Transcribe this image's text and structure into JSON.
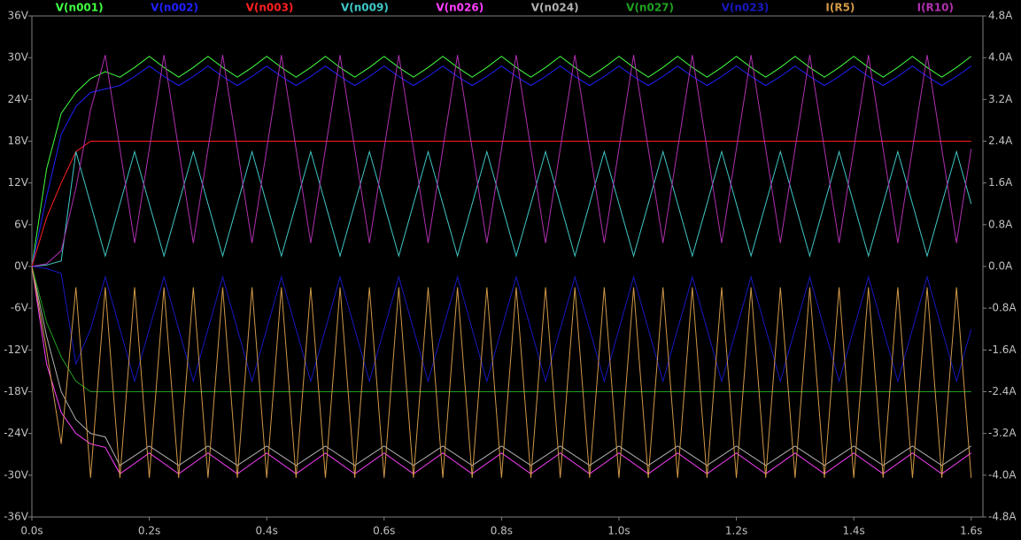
{
  "chart_data": {
    "type": "line",
    "x": [
      0,
      0.025,
      0.05,
      0.075,
      0.1,
      0.125,
      0.15,
      0.175,
      0.2,
      0.225,
      0.25,
      0.275,
      0.3,
      0.325,
      0.35,
      0.375,
      0.4,
      0.425,
      0.45,
      0.475,
      0.5,
      0.525,
      0.55,
      0.575,
      0.6,
      0.625,
      0.65,
      0.675,
      0.7,
      0.725,
      0.75,
      0.775,
      0.8,
      0.825,
      0.85,
      0.875,
      0.9,
      0.925,
      0.95,
      0.975,
      1,
      1.025,
      1.05,
      1.075,
      1.1,
      1.125,
      1.15,
      1.175,
      1.2,
      1.225,
      1.25,
      1.275,
      1.3,
      1.325,
      1.35,
      1.375,
      1.4,
      1.425,
      1.45,
      1.475,
      1.5,
      1.525,
      1.55,
      1.575,
      1.6
    ],
    "xlim": [
      0,
      1.62
    ],
    "xticks": [
      {
        "value": 0,
        "label": "0.0s"
      },
      {
        "value": 0.2,
        "label": "0.2s"
      },
      {
        "value": 0.4,
        "label": "0.4s"
      },
      {
        "value": 0.6,
        "label": "0.6s"
      },
      {
        "value": 0.8,
        "label": "0.8s"
      },
      {
        "value": 1.0,
        "label": "1.0s"
      },
      {
        "value": 1.2,
        "label": "1.2s"
      },
      {
        "value": 1.4,
        "label": "1.4s"
      },
      {
        "value": 1.6,
        "label": "1.6s"
      }
    ],
    "ylim": [
      -36,
      36
    ],
    "yticks": [
      {
        "value": 36,
        "label": "36V"
      },
      {
        "value": 30,
        "label": "30V"
      },
      {
        "value": 24,
        "label": "24V"
      },
      {
        "value": 18,
        "label": "18V"
      },
      {
        "value": 12,
        "label": "12V"
      },
      {
        "value": 6,
        "label": "6V"
      },
      {
        "value": 0,
        "label": "0V"
      },
      {
        "value": -6,
        "label": "-6V"
      },
      {
        "value": -12,
        "label": "-12V"
      },
      {
        "value": -18,
        "label": "-18V"
      },
      {
        "value": -24,
        "label": "-24V"
      },
      {
        "value": -30,
        "label": "-30V"
      },
      {
        "value": -36,
        "label": "-36V"
      }
    ],
    "y2lim": [
      -4.8,
      4.8
    ],
    "y2ticks": [
      {
        "value": 4.8,
        "label": "4.8A"
      },
      {
        "value": 4.0,
        "label": "4.0A"
      },
      {
        "value": 3.2,
        "label": "3.2A"
      },
      {
        "value": 2.4,
        "label": "2.4A"
      },
      {
        "value": 1.6,
        "label": "1.6A"
      },
      {
        "value": 0.8,
        "label": "0.8A"
      },
      {
        "value": 0,
        "label": "0.0A"
      },
      {
        "value": -0.8,
        "label": "-0.8A"
      },
      {
        "value": -1.6,
        "label": "-1.6A"
      },
      {
        "value": -2.4,
        "label": "-2.4A"
      },
      {
        "value": -3.2,
        "label": "-3.2A"
      },
      {
        "value": -4.0,
        "label": "-4.0A"
      },
      {
        "value": -4.8,
        "label": "-4.8A"
      }
    ],
    "grid": false,
    "series": [
      {
        "name": "V(n001)",
        "color": "#40ff40",
        "values": [
          0,
          14,
          22,
          25,
          27,
          28,
          27.2,
          28.6,
          30.2,
          28.6,
          27.2,
          28.6,
          30.2,
          28.6,
          27.2,
          28.6,
          30.2,
          28.6,
          27.2,
          28.6,
          30.2,
          28.6,
          27.2,
          28.6,
          30.2,
          28.6,
          27.2,
          28.6,
          30.2,
          28.6,
          27.2,
          28.6,
          30.2,
          28.6,
          27.2,
          28.6,
          30.2,
          28.6,
          27.2,
          28.6,
          30.2,
          28.6,
          27.2,
          28.6,
          30.2,
          28.6,
          27.2,
          28.6,
          30.2,
          28.6,
          27.2,
          28.6,
          30.2,
          28.6,
          27.2,
          28.6,
          30.2,
          28.6,
          27.2,
          28.6,
          30.2,
          28.6,
          27.2,
          28.6,
          30.2
        ]
      },
      {
        "name": "V(n002)",
        "color": "#2020ff",
        "values": [
          0,
          10,
          19,
          23,
          25,
          25.5,
          26,
          27.3,
          28.8,
          27.3,
          26,
          27.3,
          28.8,
          27.3,
          26,
          27.3,
          28.8,
          27.3,
          26,
          27.3,
          28.8,
          27.3,
          26,
          27.3,
          28.8,
          27.3,
          26,
          27.3,
          28.8,
          27.3,
          26,
          27.3,
          28.8,
          27.3,
          26,
          27.3,
          28.8,
          27.3,
          26,
          27.3,
          28.8,
          27.3,
          26,
          27.3,
          28.8,
          27.3,
          26,
          27.3,
          28.8,
          27.3,
          26,
          27.3,
          28.8,
          27.3,
          26,
          27.3,
          28.8,
          27.3,
          26,
          27.3,
          28.8,
          27.3,
          26,
          27.3,
          28.8
        ]
      },
      {
        "name": "V(n003)",
        "color": "#ff2020",
        "values": [
          0,
          7,
          12,
          16.5,
          18,
          18,
          18,
          18,
          18,
          18,
          18,
          18,
          18,
          18,
          18,
          18,
          18,
          18,
          18,
          18,
          18,
          18,
          18,
          18,
          18,
          18,
          18,
          18,
          18,
          18,
          18,
          18,
          18,
          18,
          18,
          18,
          18,
          18,
          18,
          18,
          18,
          18,
          18,
          18,
          18,
          18,
          18,
          18,
          18,
          18,
          18,
          18,
          18,
          18,
          18,
          18,
          18,
          18,
          18,
          18,
          18,
          18,
          18,
          18,
          18
        ]
      },
      {
        "name": "V(n009)",
        "color": "#40c8c8",
        "values": [
          0,
          0.2,
          0.8,
          16.5,
          9,
          1.5,
          9,
          16.5,
          9,
          1.5,
          9,
          16.5,
          9,
          1.5,
          9,
          16.5,
          9,
          1.5,
          9,
          16.5,
          9,
          1.5,
          9,
          16.5,
          9,
          1.5,
          9,
          16.5,
          9,
          1.5,
          9,
          16.5,
          9,
          1.5,
          9,
          16.5,
          9,
          1.5,
          9,
          16.5,
          9,
          1.5,
          9,
          16.5,
          9,
          1.5,
          9,
          16.5,
          9,
          1.5,
          9,
          16.5,
          9,
          1.5,
          9,
          16.5,
          9,
          1.5,
          9,
          16.5,
          9,
          1.5,
          9,
          16.5,
          9
        ]
      },
      {
        "name": "V(n026)",
        "color": "#ff40ff",
        "values": [
          0,
          -14,
          -21,
          -24,
          -25.5,
          -26,
          -29.8,
          -28.3,
          -26.8,
          -28.3,
          -29.8,
          -28.3,
          -26.8,
          -28.3,
          -29.8,
          -28.3,
          -26.8,
          -28.3,
          -29.8,
          -28.3,
          -26.8,
          -28.3,
          -29.8,
          -28.3,
          -26.8,
          -28.3,
          -29.8,
          -28.3,
          -26.8,
          -28.3,
          -29.8,
          -28.3,
          -26.8,
          -28.3,
          -29.8,
          -28.3,
          -26.8,
          -28.3,
          -29.8,
          -28.3,
          -26.8,
          -28.3,
          -29.8,
          -28.3,
          -26.8,
          -28.3,
          -29.8,
          -28.3,
          -26.8,
          -28.3,
          -29.8,
          -28.3,
          -26.8,
          -28.3,
          -29.8,
          -28.3,
          -26.8,
          -28.3,
          -29.8,
          -28.3,
          -26.8,
          -28.3,
          -29.8,
          -28.3,
          -26.8
        ]
      },
      {
        "name": "V(n024)",
        "color": "#b0b0b0",
        "values": [
          0,
          -10,
          -18,
          -22,
          -24,
          -24.5,
          -28.6,
          -27.2,
          -25.8,
          -27.2,
          -28.6,
          -27.2,
          -25.8,
          -27.2,
          -28.6,
          -27.2,
          -25.8,
          -27.2,
          -28.6,
          -27.2,
          -25.8,
          -27.2,
          -28.6,
          -27.2,
          -25.8,
          -27.2,
          -28.6,
          -27.2,
          -25.8,
          -27.2,
          -28.6,
          -27.2,
          -25.8,
          -27.2,
          -28.6,
          -27.2,
          -25.8,
          -27.2,
          -28.6,
          -27.2,
          -25.8,
          -27.2,
          -28.6,
          -27.2,
          -25.8,
          -27.2,
          -28.6,
          -27.2,
          -25.8,
          -27.2,
          -28.6,
          -27.2,
          -25.8,
          -27.2,
          -28.6,
          -27.2,
          -25.8,
          -27.2,
          -28.6,
          -27.2,
          -25.8,
          -27.2,
          -28.6,
          -27.2,
          -25.8
        ]
      },
      {
        "name": "V(n027)",
        "color": "#20a020",
        "values": [
          0,
          -8,
          -13,
          -16.5,
          -18,
          -18,
          -18,
          -18,
          -18,
          -18,
          -18,
          -18,
          -18,
          -18,
          -18,
          -18,
          -18,
          -18,
          -18,
          -18,
          -18,
          -18,
          -18,
          -18,
          -18,
          -18,
          -18,
          -18,
          -18,
          -18,
          -18,
          -18,
          -18,
          -18,
          -18,
          -18,
          -18,
          -18,
          -18,
          -18,
          -18,
          -18,
          -18,
          -18,
          -18,
          -18,
          -18,
          -18,
          -18,
          -18,
          -18,
          -18,
          -18,
          -18,
          -18,
          -18,
          -18,
          -18,
          -18,
          -18,
          -18,
          -18,
          -18,
          -18,
          -18
        ]
      },
      {
        "name": "V(n023)",
        "color": "#1818c0",
        "values": [
          0,
          -0.3,
          -1,
          -14,
          -9,
          -1.5,
          -9,
          -16.5,
          -9,
          -1.5,
          -9,
          -16.5,
          -9,
          -1.5,
          -9,
          -16.5,
          -9,
          -1.5,
          -9,
          -16.5,
          -9,
          -1.5,
          -9,
          -16.5,
          -9,
          -1.5,
          -9,
          -16.5,
          -9,
          -1.5,
          -9,
          -16.5,
          -9,
          -1.5,
          -9,
          -16.5,
          -9,
          -1.5,
          -9,
          -16.5,
          -9,
          -1.5,
          -9,
          -16.5,
          -9,
          -1.5,
          -9,
          -16.5,
          -9,
          -1.5,
          -9,
          -16.5,
          -9,
          -1.5,
          -9,
          -16.5,
          -9,
          -1.5,
          -9,
          -16.5,
          -9,
          -1.5,
          -9,
          -16.5,
          -9
        ]
      },
      {
        "name": "I(R5)",
        "color": "#d09848",
        "axis": "y2",
        "values": [
          0,
          -1.6,
          -3.4,
          -0.4,
          -4.05,
          -0.4,
          -4.05,
          -0.4,
          -4.05,
          -0.4,
          -4.05,
          -0.4,
          -4.05,
          -0.4,
          -4.05,
          -0.4,
          -4.05,
          -0.4,
          -4.05,
          -0.4,
          -4.05,
          -0.4,
          -4.05,
          -0.4,
          -4.05,
          -0.4,
          -4.05,
          -0.4,
          -4.05,
          -0.4,
          -4.05,
          -0.4,
          -4.05,
          -0.4,
          -4.05,
          -0.4,
          -4.05,
          -0.4,
          -4.05,
          -0.4,
          -4.05,
          -0.4,
          -4.05,
          -0.4,
          -4.05,
          -0.4,
          -4.05,
          -0.4,
          -4.05,
          -0.4,
          -4.05,
          -0.4,
          -4.05,
          -0.4,
          -4.05,
          -0.4,
          -4.05,
          -0.4,
          -4.05,
          -0.4,
          -4.05,
          -0.4,
          -4.05,
          -0.4,
          -4.05
        ]
      },
      {
        "name": "I(R10)",
        "color": "#b030b0",
        "axis": "y2",
        "values": [
          0,
          0.05,
          0.3,
          1.5,
          3,
          4.05,
          2.25,
          0.45,
          2.25,
          4.05,
          2.25,
          0.45,
          2.25,
          4.05,
          2.25,
          0.45,
          2.25,
          4.05,
          2.25,
          0.45,
          2.25,
          4.05,
          2.25,
          0.45,
          2.25,
          4.05,
          2.25,
          0.45,
          2.25,
          4.05,
          2.25,
          0.45,
          2.25,
          4.05,
          2.25,
          0.45,
          2.25,
          4.05,
          2.25,
          0.45,
          2.25,
          4.05,
          2.25,
          0.45,
          2.25,
          4.05,
          2.25,
          0.45,
          2.25,
          4.05,
          2.25,
          0.45,
          2.25,
          4.05,
          2.25,
          0.45,
          2.25,
          4.05,
          2.25,
          0.45,
          2.25,
          4.05,
          2.25,
          0.45,
          2.25
        ]
      }
    ]
  }
}
